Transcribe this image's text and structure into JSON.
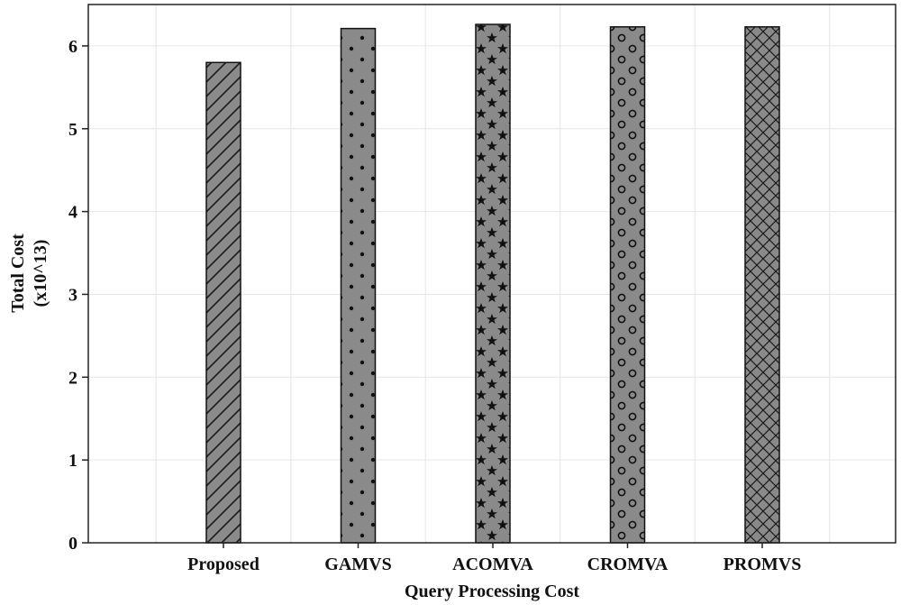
{
  "chart_data": {
    "type": "bar",
    "categories": [
      "Proposed",
      "GAMVS",
      "ACOMVA",
      "CROMVA",
      "PROMVS"
    ],
    "values": [
      5.8,
      6.21,
      6.26,
      6.23,
      6.23
    ],
    "patterns": [
      "diagonal-hatch",
      "dots",
      "stars",
      "circles",
      "crosshatch"
    ],
    "bar_fill": "#8a8a8a",
    "xlabel": "Query Processing Cost",
    "ylabel": "Total Cost",
    "ylabel_unit": "(x10^13)",
    "ylim": [
      0,
      6.5
    ],
    "yticks": [
      0,
      1,
      2,
      3,
      4,
      5,
      6
    ],
    "grid": true,
    "legend": "none"
  }
}
